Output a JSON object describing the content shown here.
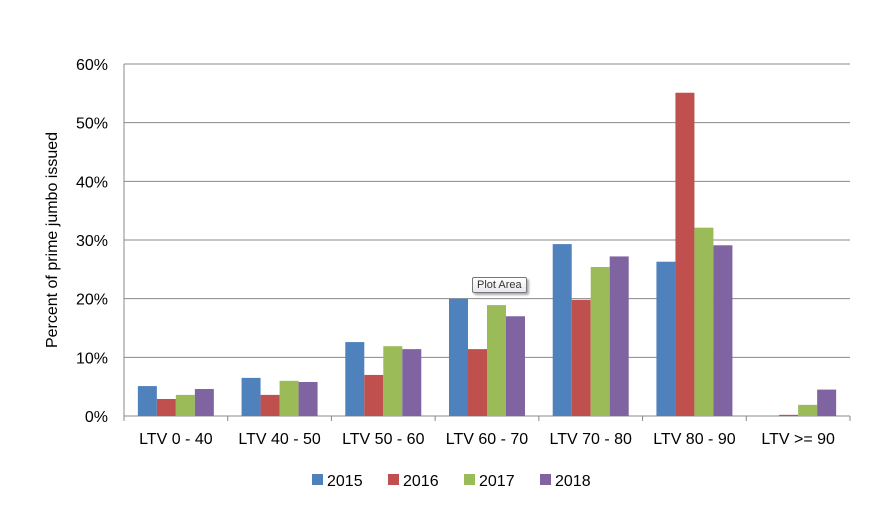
{
  "chart_data": {
    "type": "bar",
    "title": "",
    "xlabel": "",
    "ylabel": "Percent of prime jumbo issued",
    "ylim": [
      0,
      60
    ],
    "yticks": [
      "0%",
      "10%",
      "20%",
      "30%",
      "40%",
      "50%",
      "60%"
    ],
    "grid": true,
    "legend": "bottom",
    "categories": [
      "LTV 0 - 40",
      "LTV 40 - 50",
      "LTV 50 - 60",
      "LTV 60 - 70",
      "LTV 70 - 80",
      "LTV 80 - 90",
      "LTV >= 90"
    ],
    "series": [
      {
        "name": "2015",
        "color": "#4f81bd",
        "values": [
          5.1,
          6.5,
          12.6,
          20.0,
          29.3,
          26.3,
          0.0
        ]
      },
      {
        "name": "2016",
        "color": "#c0504d",
        "values": [
          2.9,
          3.6,
          7.0,
          11.4,
          19.8,
          55.1,
          0.2
        ]
      },
      {
        "name": "2017",
        "color": "#9bbb59",
        "values": [
          3.6,
          6.0,
          11.9,
          18.9,
          25.4,
          32.1,
          1.9
        ]
      },
      {
        "name": "2018",
        "color": "#8064a2",
        "values": [
          4.6,
          5.8,
          11.4,
          17.0,
          27.2,
          29.1,
          4.5
        ]
      }
    ]
  },
  "tooltip": "Plot Area"
}
